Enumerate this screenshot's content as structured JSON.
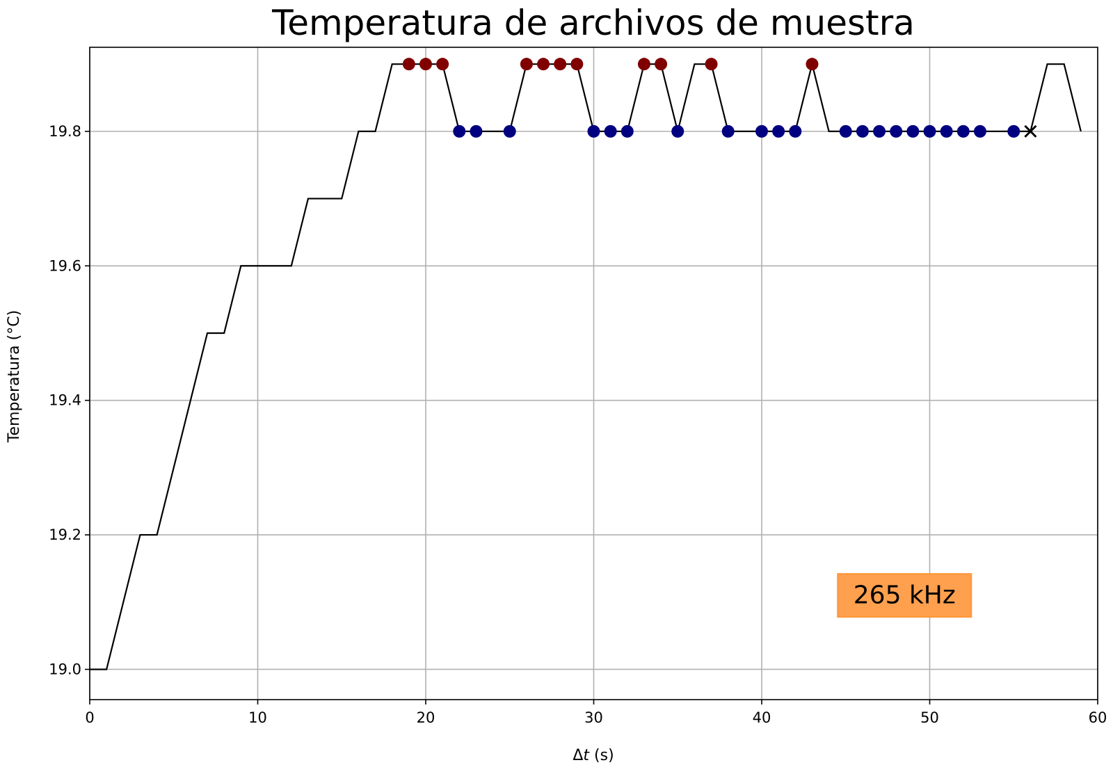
{
  "chart_data": {
    "type": "line",
    "title": "Temperatura de archivos de muestra",
    "xlabel_prefix": "Δ",
    "xlabel_var": "t",
    "xlabel_suffix": " (s)",
    "ylabel": "Temperatura (°C)",
    "xlim": [
      0,
      60
    ],
    "ylim": [
      18.955,
      19.925
    ],
    "xticks": [
      0,
      10,
      20,
      30,
      40,
      50,
      60
    ],
    "xtick_labels": [
      "0",
      "10",
      "20",
      "30",
      "40",
      "50",
      "60"
    ],
    "yticks": [
      19.0,
      19.2,
      19.4,
      19.6,
      19.8
    ],
    "ytick_labels": [
      "19.0",
      "19.2",
      "19.4",
      "19.6",
      "19.8"
    ],
    "grid": true,
    "line": {
      "color": "#000000",
      "x": [
        0,
        1,
        2,
        3,
        4,
        5,
        6,
        7,
        8,
        9,
        10,
        11,
        12,
        13,
        14,
        15,
        16,
        17,
        18,
        19,
        20,
        21,
        22,
        23,
        24,
        25,
        26,
        27,
        28,
        29,
        30,
        31,
        32,
        33,
        34,
        35,
        36,
        37,
        38,
        39,
        40,
        41,
        42,
        43,
        44,
        45,
        46,
        47,
        48,
        49,
        50,
        51,
        52,
        53,
        54,
        55,
        56,
        57,
        58,
        59
      ],
      "y": [
        19.0,
        19.0,
        19.1,
        19.2,
        19.2,
        19.3,
        19.4,
        19.5,
        19.5,
        19.6,
        19.6,
        19.6,
        19.6,
        19.7,
        19.7,
        19.7,
        19.8,
        19.8,
        19.9,
        19.9,
        19.9,
        19.9,
        19.8,
        19.8,
        19.8,
        19.8,
        19.9,
        19.9,
        19.9,
        19.9,
        19.8,
        19.8,
        19.8,
        19.9,
        19.9,
        19.8,
        19.9,
        19.9,
        19.8,
        19.8,
        19.8,
        19.8,
        19.8,
        19.9,
        19.8,
        19.8,
        19.8,
        19.8,
        19.8,
        19.8,
        19.8,
        19.8,
        19.8,
        19.8,
        19.8,
        19.8,
        19.8,
        19.9,
        19.9,
        19.8
      ]
    },
    "markers_high": {
      "color": "#800000",
      "x": [
        19,
        20,
        21,
        26,
        27,
        28,
        29,
        33,
        34,
        37,
        43
      ],
      "y": [
        19.9,
        19.9,
        19.9,
        19.9,
        19.9,
        19.9,
        19.9,
        19.9,
        19.9,
        19.9,
        19.9
      ]
    },
    "markers_low": {
      "color": "#000080",
      "x": [
        22,
        23,
        25,
        30,
        31,
        32,
        35,
        38,
        40,
        41,
        42,
        45,
        46,
        47,
        48,
        49,
        50,
        51,
        52,
        53,
        55
      ],
      "y": [
        19.8,
        19.8,
        19.8,
        19.8,
        19.8,
        19.8,
        19.8,
        19.8,
        19.8,
        19.8,
        19.8,
        19.8,
        19.8,
        19.8,
        19.8,
        19.8,
        19.8,
        19.8,
        19.8,
        19.8,
        19.8
      ]
    },
    "cross_marker": {
      "x": 56,
      "y": 19.8,
      "color": "#000000"
    },
    "annotation": {
      "text": "265 kHz",
      "x": 48.5,
      "y": 19.11,
      "bg_color": "#ffa04f",
      "border_color": "#ff9638"
    },
    "grid_color": "#b0b0b0"
  }
}
